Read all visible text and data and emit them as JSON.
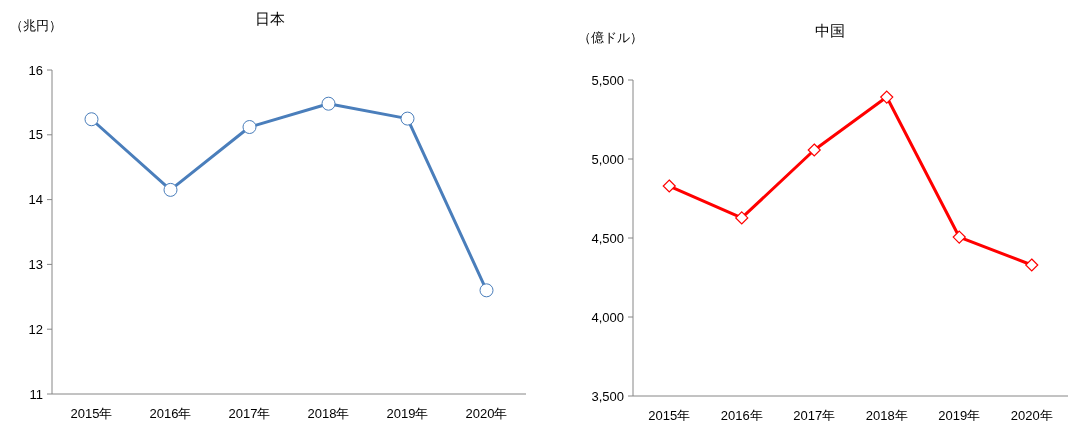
{
  "chart_data": [
    {
      "type": "line",
      "title": "日本",
      "ylabel": "（兆円）",
      "categories": [
        "2015年",
        "2016年",
        "2017年",
        "2018年",
        "2019年",
        "2020年"
      ],
      "series": [
        {
          "color": "#4a7ebb",
          "values": [
            15.24,
            14.15,
            15.12,
            15.48,
            15.25,
            12.6
          ]
        }
      ],
      "ylim": [
        11,
        16
      ],
      "yticks": [
        11,
        12,
        13,
        14,
        15,
        16
      ],
      "marker": "circle",
      "grid": false
    },
    {
      "type": "line",
      "title": "中国",
      "ylabel": "（億ドル）",
      "categories": [
        "2015年",
        "2016年",
        "2017年",
        "2018年",
        "2019年",
        "2020年"
      ],
      "series": [
        {
          "color": "#ff0000",
          "values": [
            4829,
            4627,
            5057,
            5392,
            4506,
            4329
          ]
        }
      ],
      "ylim": [
        3500,
        5500
      ],
      "yticks": [
        {
          "value": 3500,
          "label": "3,500"
        },
        {
          "value": 4000,
          "label": "4,000"
        },
        {
          "value": 4500,
          "label": "4,500"
        },
        {
          "value": 5000,
          "label": "5,000"
        },
        {
          "value": 5500,
          "label": "5,500"
        }
      ],
      "marker": "diamond",
      "grid": false
    }
  ]
}
